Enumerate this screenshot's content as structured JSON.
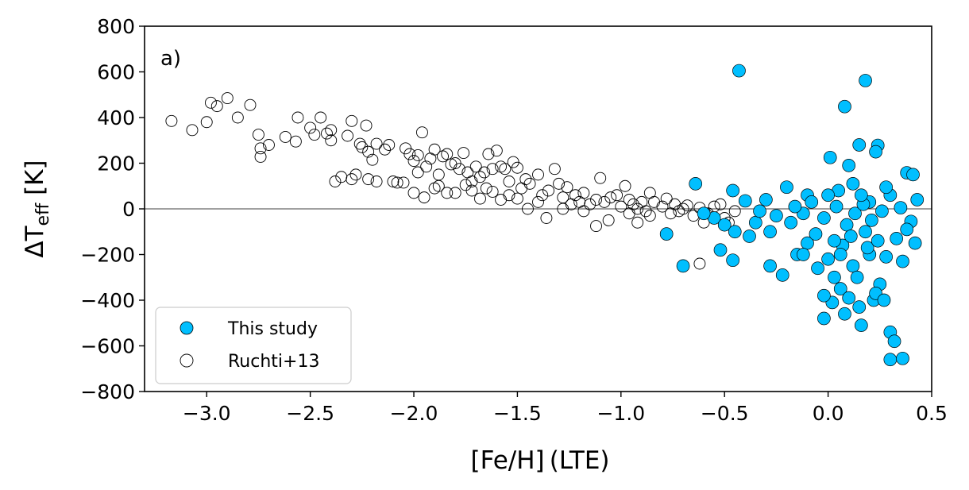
{
  "chart_data": {
    "type": "scatter",
    "panel_label": "a)",
    "xlabel": "[Fe/H] (LTE)",
    "ylabel_main": "ΔT",
    "ylabel_sub": "eff",
    "ylabel_unit": " [K]",
    "xlim": [
      -3.3,
      0.5
    ],
    "ylim": [
      -800,
      800
    ],
    "xticks": [
      -3.0,
      -2.5,
      -2.0,
      -1.5,
      -1.0,
      -0.5,
      0.0,
      0.5
    ],
    "yticks": [
      -800,
      -600,
      -400,
      -200,
      0,
      200,
      400,
      600,
      800
    ],
    "xtick_labels": [
      "−3.0",
      "−2.5",
      "−2.0",
      "−1.5",
      "−1.0",
      "−0.5",
      "0.0",
      "0.5"
    ],
    "ytick_labels": [
      "−800",
      "−600",
      "−400",
      "−200",
      "0",
      "200",
      "400",
      "600",
      "800"
    ],
    "reference_line_y": 0,
    "legend_position": "lower-left",
    "colors": {
      "this_study": "#00bfff",
      "ruchti_edge": "#000000",
      "ref_line": "#808080"
    },
    "series": [
      {
        "name": "This study",
        "style": "filled",
        "points": [
          [
            -0.43,
            605
          ],
          [
            0.18,
            562
          ],
          [
            0.08,
            448
          ],
          [
            0.15,
            280
          ],
          [
            0.24,
            278
          ],
          [
            0.1,
            190
          ],
          [
            0.01,
            225
          ],
          [
            0.23,
            250
          ],
          [
            0.38,
            158
          ],
          [
            0.41,
            150
          ],
          [
            -0.64,
            110
          ],
          [
            0.3,
            60
          ],
          [
            -0.46,
            80
          ],
          [
            -0.4,
            35
          ],
          [
            -0.3,
            40
          ],
          [
            -0.2,
            95
          ],
          [
            -0.1,
            60
          ],
          [
            0.05,
            80
          ],
          [
            0.2,
            30
          ],
          [
            0.28,
            95
          ],
          [
            0.35,
            5
          ],
          [
            0.43,
            40
          ],
          [
            0.4,
            -55
          ],
          [
            0.42,
            -150
          ],
          [
            -0.78,
            -110
          ],
          [
            -0.7,
            -250
          ],
          [
            -0.52,
            -180
          ],
          [
            -0.46,
            -225
          ],
          [
            -0.38,
            -120
          ],
          [
            -0.35,
            -60
          ],
          [
            -0.28,
            -100
          ],
          [
            -0.28,
            -250
          ],
          [
            -0.22,
            -290
          ],
          [
            -0.15,
            -200
          ],
          [
            -0.1,
            -150
          ],
          [
            -0.05,
            -260
          ],
          [
            -0.02,
            -480
          ],
          [
            0.0,
            -220
          ],
          [
            0.03,
            -300
          ],
          [
            0.06,
            -350
          ],
          [
            0.08,
            -460
          ],
          [
            0.1,
            -390
          ],
          [
            0.12,
            -250
          ],
          [
            0.14,
            -300
          ],
          [
            0.16,
            -510
          ],
          [
            0.2,
            -200
          ],
          [
            0.22,
            -400
          ],
          [
            0.25,
            -330
          ],
          [
            0.28,
            -210
          ],
          [
            0.3,
            -540
          ],
          [
            0.32,
            -580
          ],
          [
            0.3,
            -660
          ],
          [
            0.36,
            -655
          ],
          [
            0.33,
            -130
          ],
          [
            0.36,
            -230
          ],
          [
            0.38,
            -90
          ],
          [
            0.02,
            -410
          ],
          [
            -0.02,
            -380
          ],
          [
            0.18,
            -100
          ],
          [
            -0.25,
            -30
          ],
          [
            -0.18,
            -60
          ],
          [
            -0.12,
            -20
          ],
          [
            -0.08,
            30
          ],
          [
            -0.02,
            -40
          ],
          [
            0.04,
            10
          ],
          [
            0.09,
            -70
          ],
          [
            0.13,
            -20
          ],
          [
            0.17,
            20
          ],
          [
            0.21,
            -50
          ],
          [
            0.26,
            -10
          ],
          [
            -0.55,
            -40
          ],
          [
            -0.6,
            -20
          ],
          [
            -0.5,
            -70
          ],
          [
            -0.45,
            -100
          ],
          [
            -0.33,
            -10
          ],
          [
            -0.06,
            -110
          ],
          [
            0.07,
            -160
          ],
          [
            0.11,
            -120
          ],
          [
            0.19,
            -170
          ],
          [
            0.24,
            -140
          ],
          [
            -0.16,
            10
          ],
          [
            0.0,
            60
          ],
          [
            0.12,
            110
          ],
          [
            0.16,
            60
          ],
          [
            -0.12,
            -200
          ],
          [
            0.23,
            -370
          ],
          [
            0.06,
            -200
          ],
          [
            0.27,
            -400
          ],
          [
            0.15,
            -430
          ],
          [
            0.03,
            -140
          ]
        ]
      },
      {
        "name": "Ruchti+13",
        "style": "open",
        "points": [
          [
            -3.17,
            385
          ],
          [
            -3.07,
            345
          ],
          [
            -3.0,
            380
          ],
          [
            -2.98,
            465
          ],
          [
            -2.95,
            450
          ],
          [
            -2.9,
            485
          ],
          [
            -2.85,
            400
          ],
          [
            -2.79,
            455
          ],
          [
            -2.75,
            325
          ],
          [
            -2.74,
            265
          ],
          [
            -2.74,
            228
          ],
          [
            -2.7,
            280
          ],
          [
            -2.62,
            315
          ],
          [
            -2.57,
            295
          ],
          [
            -2.56,
            400
          ],
          [
            -2.5,
            355
          ],
          [
            -2.48,
            325
          ],
          [
            -2.45,
            400
          ],
          [
            -2.42,
            330
          ],
          [
            -2.4,
            345
          ],
          [
            -2.4,
            300
          ],
          [
            -2.35,
            140
          ],
          [
            -2.32,
            320
          ],
          [
            -2.3,
            385
          ],
          [
            -2.28,
            150
          ],
          [
            -2.26,
            285
          ],
          [
            -2.25,
            270
          ],
          [
            -2.23,
            365
          ],
          [
            -2.22,
            250
          ],
          [
            -2.2,
            215
          ],
          [
            -2.18,
            285
          ],
          [
            -2.14,
            260
          ],
          [
            -2.12,
            280
          ],
          [
            -2.1,
            120
          ],
          [
            -2.08,
            115
          ],
          [
            -2.04,
            265
          ],
          [
            -2.02,
            240
          ],
          [
            -2.0,
            210
          ],
          [
            -1.98,
            235
          ],
          [
            -1.96,
            335
          ],
          [
            -1.94,
            185
          ],
          [
            -1.92,
            220
          ],
          [
            -1.9,
            260
          ],
          [
            -1.88,
            150
          ],
          [
            -1.86,
            230
          ],
          [
            -1.84,
            240
          ],
          [
            -1.82,
            195
          ],
          [
            -1.8,
            200
          ],
          [
            -1.78,
            175
          ],
          [
            -1.76,
            245
          ],
          [
            -1.74,
            160
          ],
          [
            -1.72,
            120
          ],
          [
            -1.7,
            185
          ],
          [
            -1.68,
            140
          ],
          [
            -1.66,
            160
          ],
          [
            -1.64,
            240
          ],
          [
            -1.62,
            175
          ],
          [
            -1.6,
            255
          ],
          [
            -1.58,
            185
          ],
          [
            -1.56,
            175
          ],
          [
            -1.54,
            120
          ],
          [
            -1.52,
            205
          ],
          [
            -1.5,
            180
          ],
          [
            -1.48,
            90
          ],
          [
            -1.46,
            130
          ],
          [
            -1.44,
            110
          ],
          [
            -1.4,
            150
          ],
          [
            -1.38,
            60
          ],
          [
            -1.35,
            80
          ],
          [
            -1.32,
            175
          ],
          [
            -1.3,
            110
          ],
          [
            -1.28,
            50
          ],
          [
            -1.26,
            95
          ],
          [
            -1.24,
            20
          ],
          [
            -1.22,
            60
          ],
          [
            -1.2,
            30
          ],
          [
            -1.18,
            70
          ],
          [
            -1.15,
            20
          ],
          [
            -1.12,
            40
          ],
          [
            -1.1,
            135
          ],
          [
            -1.08,
            30
          ],
          [
            -1.05,
            50
          ],
          [
            -1.02,
            60
          ],
          [
            -1.0,
            10
          ],
          [
            -0.98,
            100
          ],
          [
            -0.96,
            40
          ],
          [
            -0.94,
            20
          ],
          [
            -0.92,
            0
          ],
          [
            -0.9,
            30
          ],
          [
            -0.88,
            -10
          ],
          [
            -0.86,
            70
          ],
          [
            -0.84,
            30
          ],
          [
            -0.8,
            10
          ],
          [
            -0.78,
            45
          ],
          [
            -0.76,
            -20
          ],
          [
            -0.74,
            20
          ],
          [
            -0.72,
            -10
          ],
          [
            -0.7,
            0
          ],
          [
            -0.68,
            15
          ],
          [
            -0.65,
            -30
          ],
          [
            -0.62,
            5
          ],
          [
            -0.6,
            -60
          ],
          [
            -0.58,
            -20
          ],
          [
            -0.55,
            10
          ],
          [
            -0.52,
            20
          ],
          [
            -0.5,
            -40
          ],
          [
            -0.48,
            -60
          ],
          [
            -0.62,
            -240
          ],
          [
            -0.45,
            -10
          ],
          [
            -2.38,
            120
          ],
          [
            -2.18,
            120
          ],
          [
            -2.05,
            115
          ],
          [
            -2.0,
            70
          ],
          [
            -1.95,
            50
          ],
          [
            -1.88,
            100
          ],
          [
            -1.8,
            70
          ],
          [
            -1.75,
            105
          ],
          [
            -1.68,
            45
          ],
          [
            -1.62,
            75
          ],
          [
            -1.58,
            40
          ],
          [
            -1.54,
            60
          ],
          [
            -1.5,
            45
          ],
          [
            -1.45,
            0
          ],
          [
            -1.4,
            30
          ],
          [
            -1.36,
            -40
          ],
          [
            -1.28,
            0
          ],
          [
            -1.18,
            -10
          ],
          [
            -1.12,
            -75
          ],
          [
            -1.06,
            -50
          ],
          [
            -0.96,
            -20
          ],
          [
            -0.92,
            -60
          ],
          [
            -0.86,
            -30
          ],
          [
            -1.65,
            90
          ],
          [
            -1.72,
            80
          ],
          [
            -2.3,
            130
          ],
          [
            -2.22,
            130
          ],
          [
            -1.98,
            160
          ],
          [
            -1.9,
            90
          ],
          [
            -1.84,
            70
          ]
        ]
      }
    ]
  }
}
